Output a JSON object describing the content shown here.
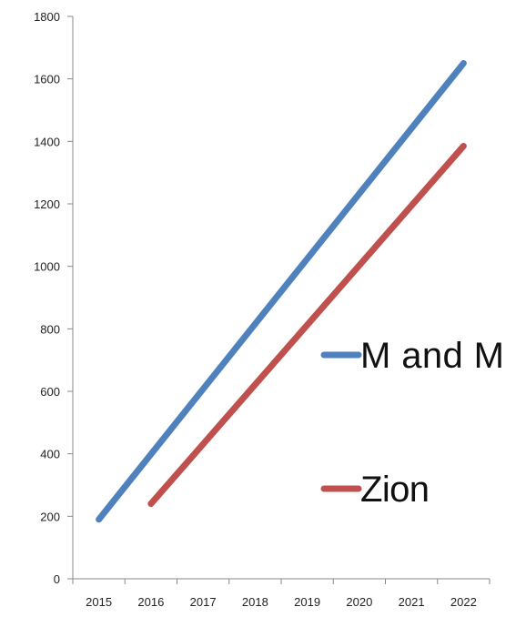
{
  "chart_data": {
    "type": "line",
    "title": "",
    "xlabel": "",
    "ylabel": "",
    "x_ticks": [
      "2015",
      "2016",
      "2017",
      "2018",
      "2019",
      "2020",
      "2021",
      "2022"
    ],
    "y_ticks": [
      0,
      200,
      400,
      600,
      800,
      1000,
      1200,
      1400,
      1600,
      1800
    ],
    "ylim": [
      0,
      1800
    ],
    "grid": false,
    "legend_position": "right",
    "series": [
      {
        "name": "M and M",
        "color": "#4f81bd",
        "points": [
          {
            "x": "2015",
            "y": 190
          },
          {
            "x": "2022",
            "y": 1650
          }
        ]
      },
      {
        "name": "Zion",
        "color": "#c0504d",
        "points": [
          {
            "x": "2016",
            "y": 240
          },
          {
            "x": "2022",
            "y": 1385
          }
        ]
      }
    ]
  }
}
